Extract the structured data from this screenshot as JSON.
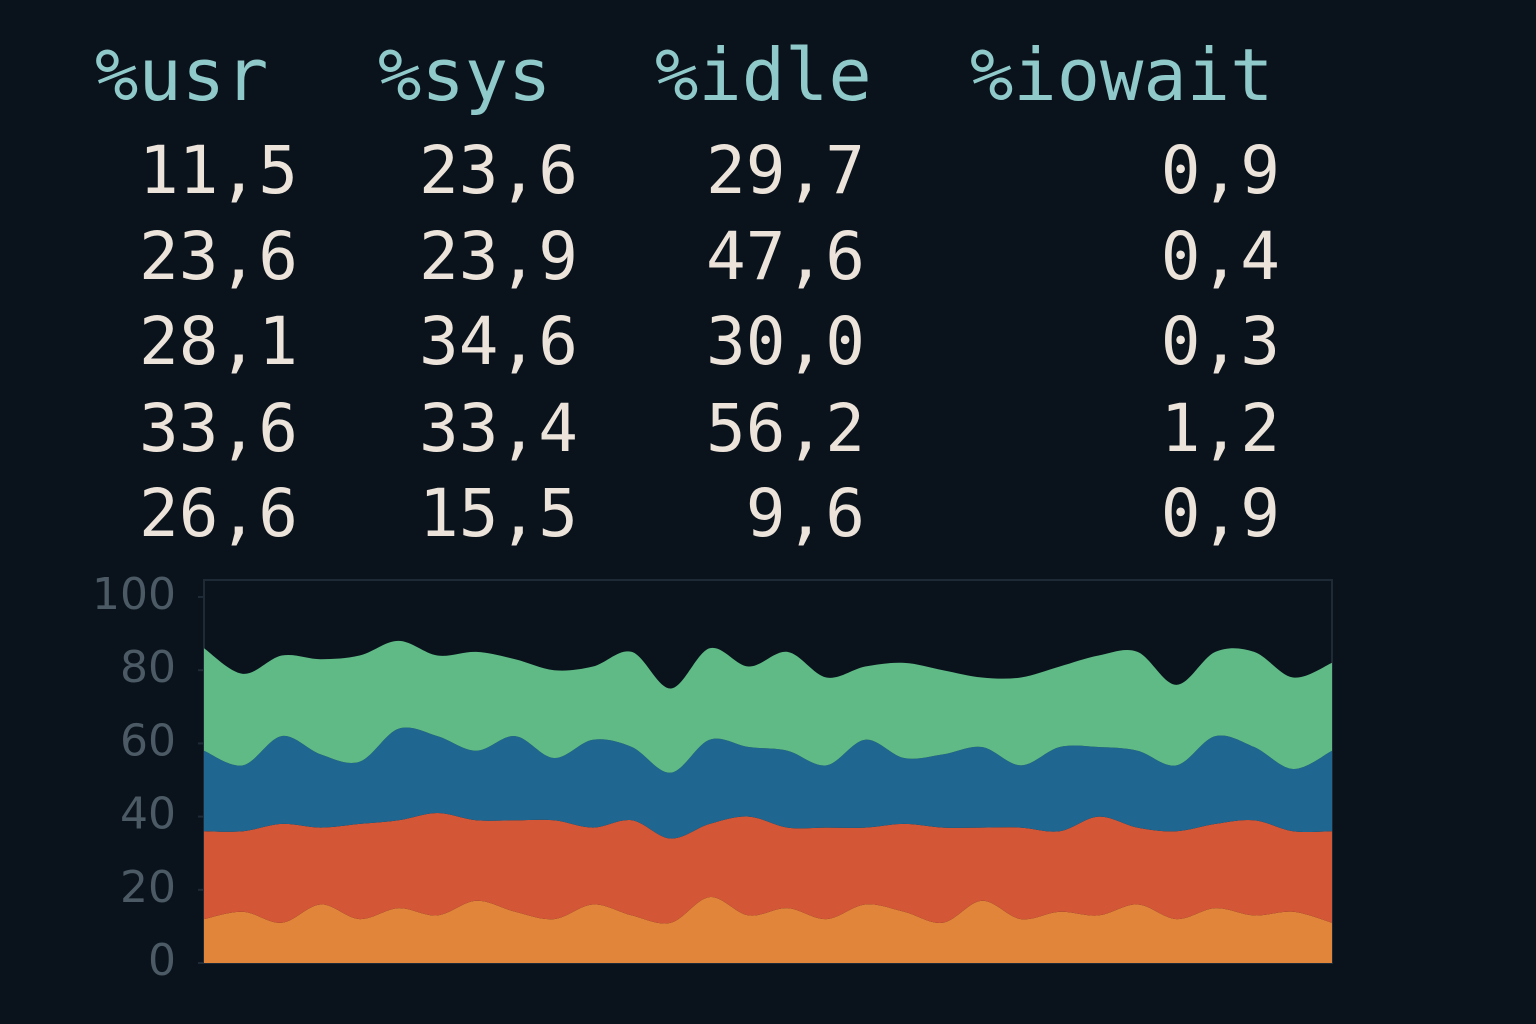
{
  "table": {
    "columns": [
      "%usr",
      "%sys",
      "%idle",
      "%iowait"
    ],
    "rows": [
      [
        "11,5",
        "23,6",
        "29,7",
        "0,9"
      ],
      [
        "23,6",
        "23,9",
        "47,6",
        "0,4"
      ],
      [
        "28,1",
        "34,6",
        "30,0",
        "0,3"
      ],
      [
        "33,6",
        "33,4",
        "56,2",
        "1,2"
      ],
      [
        "26,6",
        "15,5",
        "9,6",
        "0,9"
      ]
    ]
  },
  "chart_data": {
    "type": "stacked-area",
    "series": [
      {
        "color": "#e0853a",
        "values": [
          12,
          14,
          11,
          16,
          12,
          15,
          13,
          17,
          14,
          12,
          16,
          13,
          11,
          18,
          13,
          15,
          12,
          16,
          14,
          11,
          17,
          12,
          14,
          13,
          16,
          12,
          15,
          13,
          14,
          11
        ]
      },
      {
        "color": "#d35636",
        "values": [
          24,
          22,
          27,
          21,
          26,
          24,
          28,
          22,
          25,
          27,
          21,
          26,
          23,
          20,
          27,
          22,
          25,
          21,
          24,
          26,
          20,
          25,
          22,
          27,
          21,
          24,
          23,
          26,
          22,
          25
        ]
      },
      {
        "color": "#1f6690",
        "values": [
          22,
          18,
          24,
          20,
          17,
          25,
          21,
          19,
          23,
          17,
          24,
          20,
          18,
          23,
          19,
          21,
          17,
          24,
          18,
          20,
          22,
          17,
          23,
          19,
          21,
          18,
          24,
          20,
          17,
          22
        ]
      },
      {
        "color": "#5fba86",
        "values": [
          28,
          25,
          22,
          26,
          29,
          24,
          22,
          27,
          21,
          24,
          20,
          26,
          23,
          25,
          22,
          27,
          24,
          20,
          26,
          23,
          19,
          24,
          22,
          25,
          27,
          22,
          23,
          26,
          25,
          24
        ]
      }
    ],
    "ylim": [
      0,
      100
    ],
    "yticks": [
      0,
      20,
      40,
      60,
      80,
      100
    ]
  }
}
